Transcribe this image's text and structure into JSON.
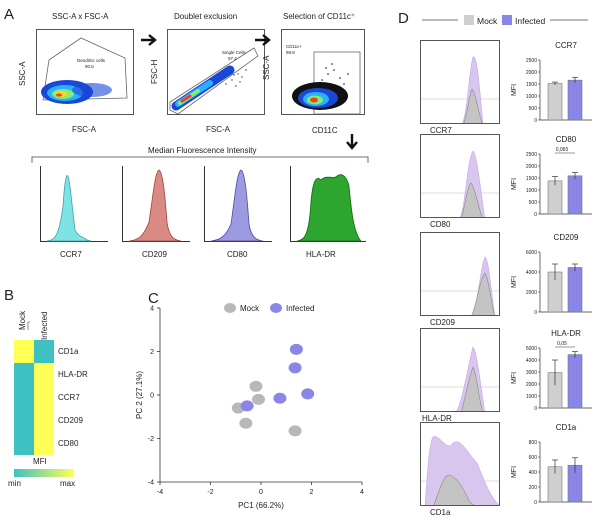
{
  "panels": {
    "a": "A",
    "b": "B",
    "c": "C",
    "d": "D"
  },
  "flow": {
    "plots": [
      {
        "title": "SSC-A x FSC-A",
        "xlabel": "FSC-A",
        "ylabel": "SSC-A",
        "gate_name": "Dendritic cells",
        "gate_pct": "90.6"
      },
      {
        "title": "Doublet exclusion",
        "xlabel": "FSC-A",
        "ylabel": "FSC-H",
        "gate_name": "Single Cells",
        "gate_pct": "97.4"
      },
      {
        "title": "Selection of CD11c⁺",
        "xlabel": "CD11C",
        "ylabel": "SSC-A",
        "gate_name": "CD11c+",
        "gate_pct": "98.8"
      }
    ],
    "mfi_title": "Median Fluorescence Intensity",
    "histograms": [
      {
        "label": "CCR7",
        "color": "#7fe3e3",
        "stroke": "#3aa6a6"
      },
      {
        "label": "CD209",
        "color": "#d98a84",
        "stroke": "#a6403a"
      },
      {
        "label": "CD80",
        "color": "#9c9ae0",
        "stroke": "#4c4aa6"
      },
      {
        "label": "HLA-DR",
        "color": "#2ea52e",
        "stroke": "#116b11"
      }
    ]
  },
  "heatmap": {
    "columns": [
      "Mock",
      "Infected"
    ],
    "rows": [
      "CD1a",
      "HLA-DR",
      "CCR7",
      "CD209",
      "CD80"
    ],
    "values": [
      [
        1,
        0
      ],
      [
        0,
        1
      ],
      [
        0,
        1
      ],
      [
        0,
        1
      ],
      [
        0,
        1
      ]
    ],
    "scale_title": "MFI",
    "scale_min": "min",
    "scale_max": "max",
    "colors": {
      "low": "#3fc1c1",
      "high": "#ffff55"
    }
  },
  "chart_data": [
    {
      "type": "scatter",
      "xlabel": "PC1 (66.2%)",
      "ylabel": "PC 2 (27.1%)",
      "xlim": [
        -4,
        4
      ],
      "ylim": [
        -4,
        4
      ],
      "xticks": [
        "-4",
        "-2",
        "0",
        "2",
        "4"
      ],
      "yticks": [
        "-4",
        "-2",
        "0",
        "2",
        "4"
      ],
      "legend_position": "top",
      "series": [
        {
          "name": "Mock",
          "color": "#b8b8b8",
          "points": [
            [
              -0.9,
              -0.6
            ],
            [
              -0.1,
              -0.2
            ],
            [
              -0.6,
              -1.3
            ],
            [
              -0.2,
              0.4
            ],
            [
              1.35,
              -1.65
            ]
          ]
        },
        {
          "name": "Infected",
          "color": "#8a86e8",
          "points": [
            [
              1.4,
              2.1
            ],
            [
              1.35,
              1.25
            ],
            [
              1.85,
              0.05
            ],
            [
              0.75,
              -0.15
            ],
            [
              -0.55,
              -0.5
            ]
          ]
        }
      ]
    },
    {
      "type": "bar",
      "legend": [
        "Mock",
        "Infected"
      ],
      "legend_colors": [
        "#cfcfcf",
        "#8a86e8"
      ],
      "panels": [
        {
          "title": "CCR7",
          "ylabel": "MFI",
          "ylim": [
            0,
            2500
          ],
          "yticks": [
            "0",
            "500",
            "1000",
            "1500",
            "2000",
            "2500"
          ],
          "values": [
            1520,
            1660
          ],
          "errors": [
            60,
            120
          ],
          "annotation": ""
        },
        {
          "title": "CD80",
          "ylabel": "MFI",
          "ylim": [
            0,
            2500
          ],
          "yticks": [
            "0",
            "500",
            "1000",
            "1500",
            "2000",
            "2500"
          ],
          "values": [
            1380,
            1590
          ],
          "errors": [
            180,
            140
          ],
          "annotation": "0,065"
        },
        {
          "title": "CD209",
          "ylabel": "MFI",
          "ylim": [
            0,
            6000
          ],
          "yticks": [
            "0",
            "2000",
            "4000",
            "6000"
          ],
          "values": [
            4000,
            4450
          ],
          "errors": [
            800,
            350
          ],
          "annotation": ""
        },
        {
          "title": "HLA-DR",
          "ylabel": "MFI",
          "ylim": [
            0,
            5000
          ],
          "yticks": [
            "0",
            "1000",
            "2000",
            "3000",
            "4000",
            "5000"
          ],
          "values": [
            2950,
            4450
          ],
          "errors": [
            1050,
            250
          ],
          "annotation": "0,05"
        },
        {
          "title": "CD1a",
          "ylabel": "MFI",
          "ylim": [
            0,
            800
          ],
          "yticks": [
            "0",
            "200",
            "400",
            "600",
            "800"
          ],
          "values": [
            470,
            490
          ],
          "errors": [
            90,
            100
          ],
          "annotation": ""
        }
      ]
    }
  ],
  "overlay": {
    "labels": [
      "CCR7",
      "CD80",
      "CD209",
      "HLA-DR",
      "CD1a"
    ],
    "mock_color": "#c4c4c4",
    "infected_color": "#d9c6ee"
  }
}
